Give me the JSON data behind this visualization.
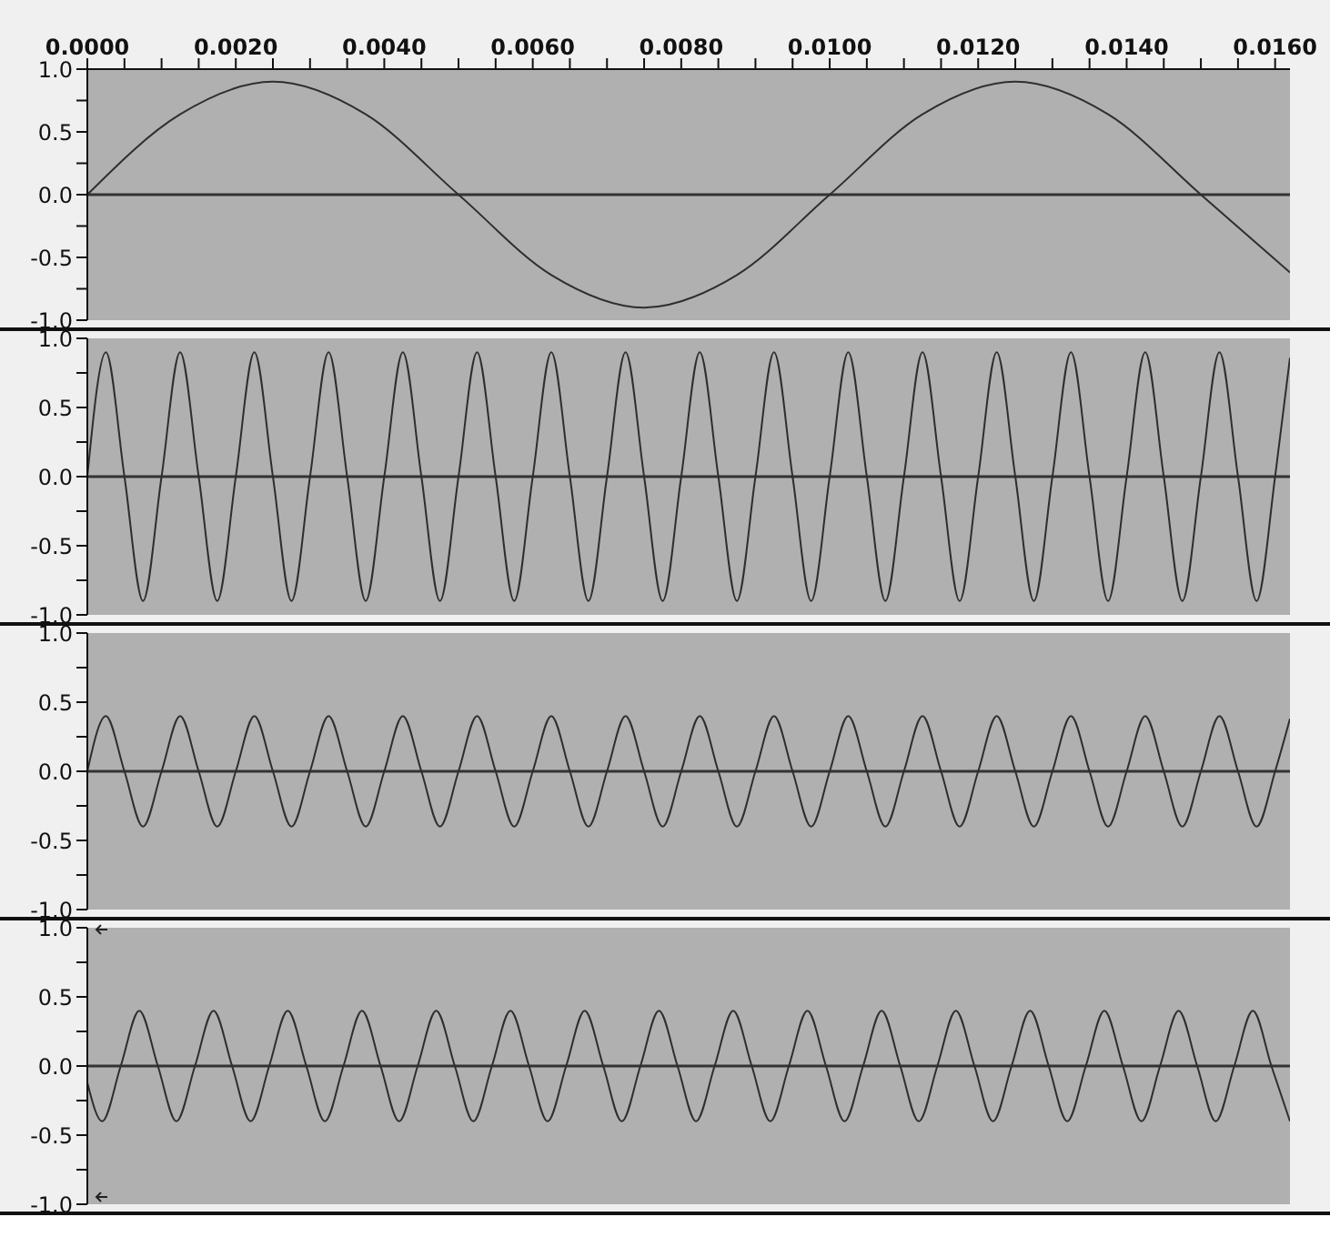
{
  "chart_data": [
    {
      "type": "line",
      "series": [
        {
          "color": "#2e2e2e",
          "x": [
            0,
            0.00125,
            0.0025,
            0.00375,
            0.005,
            0.00625,
            0.0075,
            0.00875,
            0.01,
            0.01125,
            0.0125,
            0.01375,
            0.015,
            0.0162
          ],
          "values": [
            0,
            0.64,
            0.9,
            0.64,
            0,
            -0.64,
            -0.9,
            -0.64,
            0,
            0.64,
            0.9,
            0.64,
            0,
            -0.62
          ]
        }
      ],
      "xlim": [
        0,
        0.0162
      ],
      "xticks": [
        {
          "value": 0,
          "label": "0.0000"
        },
        {
          "value": 0.0005,
          "label": null
        },
        {
          "value": 0.001,
          "label": null
        },
        {
          "value": 0.0015,
          "label": null
        },
        {
          "value": 0.002,
          "label": "0.0020"
        },
        {
          "value": 0.0025,
          "label": null
        },
        {
          "value": 0.003,
          "label": null
        },
        {
          "value": 0.0035,
          "label": null
        },
        {
          "value": 0.004,
          "label": "0.0040"
        },
        {
          "value": 0.0045,
          "label": null
        },
        {
          "value": 0.005,
          "label": null
        },
        {
          "value": 0.0055,
          "label": null
        },
        {
          "value": 0.006,
          "label": "0.0060"
        },
        {
          "value": 0.0065,
          "label": null
        },
        {
          "value": 0.007,
          "label": null
        },
        {
          "value": 0.0075,
          "label": null
        },
        {
          "value": 0.008,
          "label": "0.0080"
        },
        {
          "value": 0.0085,
          "label": null
        },
        {
          "value": 0.009,
          "label": null
        },
        {
          "value": 0.0095,
          "label": null
        },
        {
          "value": 0.01,
          "label": "0.0100"
        },
        {
          "value": 0.0105,
          "label": null
        },
        {
          "value": 0.011,
          "label": null
        },
        {
          "value": 0.0115,
          "label": null
        },
        {
          "value": 0.012,
          "label": "0.0120"
        },
        {
          "value": 0.0125,
          "label": null
        },
        {
          "value": 0.013,
          "label": null
        },
        {
          "value": 0.0135,
          "label": null
        },
        {
          "value": 0.014,
          "label": "0.0140"
        },
        {
          "value": 0.0145,
          "label": null
        },
        {
          "value": 0.015,
          "label": null
        },
        {
          "value": 0.0155,
          "label": null
        },
        {
          "value": 0.016,
          "label": "0.0160"
        }
      ],
      "ylim": [
        -1,
        1
      ],
      "yticks": [
        {
          "value": -1,
          "label": "-1.0"
        },
        {
          "value": -0.75,
          "label": null
        },
        {
          "value": -0.5,
          "label": "-0.5"
        },
        {
          "value": -0.25,
          "label": null
        },
        {
          "value": 0,
          "label": "0.0"
        },
        {
          "value": 0.25,
          "label": null
        },
        {
          "value": 0.5,
          "label": "0.5"
        },
        {
          "value": 0.75,
          "label": null
        },
        {
          "value": 1,
          "label": "1.0"
        }
      ],
      "ref_lines": [
        {
          "axis": "y",
          "value": 0,
          "color": "#333333"
        }
      ]
    },
    {
      "type": "line",
      "tick_labels": "y",
      "series": [
        {
          "color": "#2e2e2e",
          "x": [
            0,
            0.00025,
            0.0005,
            0.00075,
            0.001,
            0.00125,
            0.0015,
            0.00175,
            0.002,
            0.00225,
            0.0025,
            0.00275,
            0.003,
            0.00325,
            0.0035,
            0.00375,
            0.004,
            0.00425,
            0.0045,
            0.00475,
            0.005,
            0.00525,
            0.0055,
            0.00575,
            0.006,
            0.00625,
            0.0065,
            0.00675,
            0.007,
            0.00725,
            0.0075,
            0.00775,
            0.008,
            0.00825,
            0.0085,
            0.00875,
            0.009,
            0.00925,
            0.0095,
            0.00975,
            0.01,
            0.01025,
            0.0105,
            0.01075,
            0.011,
            0.01125,
            0.0115,
            0.01175,
            0.012,
            0.01225,
            0.0125,
            0.01275,
            0.013,
            0.01325,
            0.0135,
            0.01375,
            0.014,
            0.01425,
            0.0145,
            0.01475,
            0.015,
            0.01525,
            0.0155,
            0.01575,
            0.016,
            0.0162
          ],
          "values": [
            0,
            0.9,
            0,
            -0.9,
            0,
            0.9,
            0,
            -0.9,
            0,
            0.9,
            0,
            -0.9,
            0,
            0.9,
            0,
            -0.9,
            0,
            0.9,
            0,
            -0.9,
            0,
            0.9,
            0,
            -0.9,
            0,
            0.9,
            0,
            -0.9,
            0,
            0.9,
            0,
            -0.9,
            0,
            0.9,
            0,
            -0.9,
            0,
            0.9,
            0,
            -0.9,
            0,
            0.9,
            0,
            -0.9,
            0,
            0.9,
            0,
            -0.9,
            0,
            0.9,
            0,
            -0.9,
            0,
            0.9,
            0,
            -0.9,
            0,
            0.9,
            0,
            -0.9,
            0,
            0.9,
            0,
            -0.9,
            0,
            0.86
          ]
        }
      ],
      "xlim": [
        0,
        0.0162
      ],
      "ylim": [
        -1,
        1
      ],
      "yticks": [
        {
          "value": -1,
          "label": "-1.0"
        },
        {
          "value": -0.75,
          "label": null
        },
        {
          "value": -0.5,
          "label": "-0.5"
        },
        {
          "value": -0.25,
          "label": null
        },
        {
          "value": 0,
          "label": "0.0"
        },
        {
          "value": 0.25,
          "label": null
        },
        {
          "value": 0.5,
          "label": "0.5"
        },
        {
          "value": 0.75,
          "label": null
        },
        {
          "value": 1,
          "label": "1.0"
        }
      ],
      "ref_lines": [
        {
          "axis": "y",
          "value": 0,
          "color": "#333333"
        }
      ]
    },
    {
      "type": "line",
      "tick_labels": "y",
      "series": [
        {
          "color": "#2e2e2e",
          "x": [
            0,
            0.00025,
            0.0005,
            0.00075,
            0.001,
            0.00125,
            0.0015,
            0.00175,
            0.002,
            0.00225,
            0.0025,
            0.00275,
            0.003,
            0.00325,
            0.0035,
            0.00375,
            0.004,
            0.00425,
            0.0045,
            0.00475,
            0.005,
            0.00525,
            0.0055,
            0.00575,
            0.006,
            0.00625,
            0.0065,
            0.00675,
            0.007,
            0.00725,
            0.0075,
            0.00775,
            0.008,
            0.00825,
            0.0085,
            0.00875,
            0.009,
            0.00925,
            0.0095,
            0.00975,
            0.01,
            0.01025,
            0.0105,
            0.01075,
            0.011,
            0.01125,
            0.0115,
            0.01175,
            0.012,
            0.01225,
            0.0125,
            0.01275,
            0.013,
            0.01325,
            0.0135,
            0.01375,
            0.014,
            0.01425,
            0.0145,
            0.01475,
            0.015,
            0.01525,
            0.0155,
            0.01575,
            0.016,
            0.0162
          ],
          "values": [
            0,
            0.4,
            0,
            -0.4,
            0,
            0.4,
            0,
            -0.4,
            0,
            0.4,
            0,
            -0.4,
            0,
            0.4,
            0,
            -0.4,
            0,
            0.4,
            0,
            -0.4,
            0,
            0.4,
            0,
            -0.4,
            0,
            0.4,
            0,
            -0.4,
            0,
            0.4,
            0,
            -0.4,
            0,
            0.4,
            0,
            -0.4,
            0,
            0.4,
            0,
            -0.4,
            0,
            0.4,
            0,
            -0.4,
            0,
            0.4,
            0,
            -0.4,
            0,
            0.4,
            0,
            -0.4,
            0,
            0.4,
            0,
            -0.4,
            0,
            0.4,
            0,
            -0.4,
            0,
            0.4,
            0,
            -0.4,
            0,
            0.38
          ]
        }
      ],
      "xlim": [
        0,
        0.0162
      ],
      "ylim": [
        -1,
        1
      ],
      "yticks": [
        {
          "value": -1,
          "label": "-1.0"
        },
        {
          "value": -0.75,
          "label": null
        },
        {
          "value": -0.5,
          "label": "-0.5"
        },
        {
          "value": -0.25,
          "label": null
        },
        {
          "value": 0,
          "label": "0.0"
        },
        {
          "value": 0.25,
          "label": null
        },
        {
          "value": 0.5,
          "label": "0.5"
        },
        {
          "value": 0.75,
          "label": null
        },
        {
          "value": 1,
          "label": "1.0"
        }
      ],
      "ref_lines": [
        {
          "axis": "y",
          "value": 0,
          "color": "#333333"
        }
      ]
    },
    {
      "type": "line",
      "tick_labels": "y",
      "series": [
        {
          "color": "#2e2e2e",
          "x": [
            0,
            0.0002,
            0.00045,
            0.0007,
            0.00095,
            0.0012,
            0.00145,
            0.0017,
            0.00195,
            0.0022,
            0.00245,
            0.0027,
            0.00295,
            0.0032,
            0.00345,
            0.0037,
            0.00395,
            0.0042,
            0.00445,
            0.0047,
            0.00495,
            0.0052,
            0.00545,
            0.0057,
            0.00595,
            0.0062,
            0.00645,
            0.0067,
            0.00695,
            0.0072,
            0.00745,
            0.0077,
            0.00795,
            0.0082,
            0.00845,
            0.0087,
            0.00895,
            0.0092,
            0.00945,
            0.0097,
            0.00995,
            0.0102,
            0.01045,
            0.0107,
            0.01095,
            0.0112,
            0.01145,
            0.0117,
            0.01195,
            0.0122,
            0.01245,
            0.0127,
            0.01295,
            0.0132,
            0.01345,
            0.0137,
            0.01395,
            0.0142,
            0.01445,
            0.0147,
            0.01495,
            0.0152,
            0.01545,
            0.0157,
            0.01595,
            0.0162
          ],
          "values": [
            -0.12,
            -0.4,
            0,
            0.4,
            0,
            -0.4,
            0,
            0.4,
            0,
            -0.4,
            0,
            0.4,
            0,
            -0.4,
            0,
            0.4,
            0,
            -0.4,
            0,
            0.4,
            0,
            -0.4,
            0,
            0.4,
            0,
            -0.4,
            0,
            0.4,
            0,
            -0.4,
            0,
            0.4,
            0,
            -0.4,
            0,
            0.4,
            0,
            -0.4,
            0,
            0.4,
            0,
            -0.4,
            0,
            0.4,
            0,
            -0.4,
            0,
            0.4,
            0,
            -0.4,
            0,
            0.4,
            0,
            -0.4,
            0,
            0.4,
            0,
            -0.4,
            0,
            0.4,
            0,
            -0.4,
            0,
            0.4,
            0,
            -0.4
          ]
        }
      ],
      "xlim": [
        0,
        0.0162
      ],
      "ylim": [
        -1,
        1
      ],
      "yticks": [
        {
          "value": -1,
          "label": "-1.0"
        },
        {
          "value": -0.75,
          "label": null
        },
        {
          "value": -0.5,
          "label": "-0.5"
        },
        {
          "value": -0.25,
          "label": null
        },
        {
          "value": 0,
          "label": "0.0"
        },
        {
          "value": 0.25,
          "label": null
        },
        {
          "value": 0.5,
          "label": "0.5"
        },
        {
          "value": 0.75,
          "label": null
        },
        {
          "value": 1,
          "label": "1.0"
        }
      ],
      "ref_lines": [
        {
          "axis": "y",
          "value": 0,
          "color": "#333333"
        }
      ]
    }
  ]
}
